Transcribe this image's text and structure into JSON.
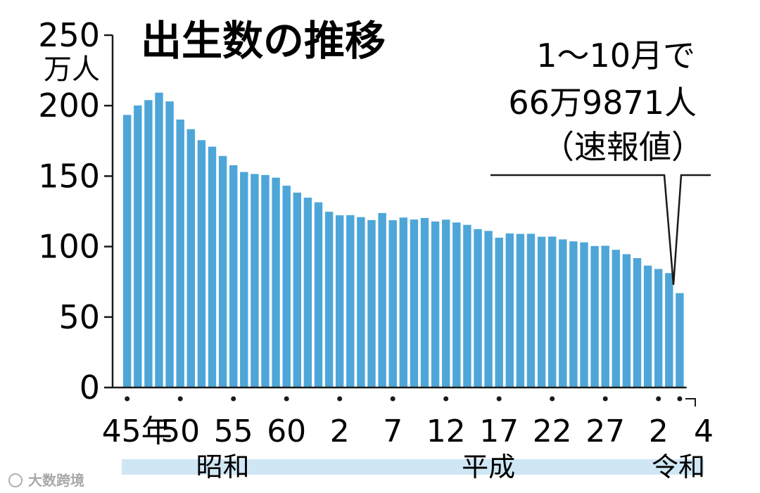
{
  "chart_data": {
    "type": "bar",
    "title": "出生数の推移",
    "y_unit_top": "250",
    "y_unit_label": "万人",
    "ylim": [
      0,
      250
    ],
    "yticks": [
      "0",
      "50",
      "100",
      "150",
      "200"
    ],
    "ytick_values": [
      0,
      50,
      100,
      150,
      200
    ],
    "xtick_labels": [
      "45年",
      "50",
      "55",
      "60",
      "2",
      "7",
      "12",
      "17",
      "22",
      "27",
      "2",
      "4"
    ],
    "xtick_indices": [
      0,
      5,
      10,
      15,
      20,
      25,
      30,
      35,
      40,
      45,
      50,
      52
    ],
    "values": [
      193.4,
      200.1,
      203.9,
      209.2,
      203.0,
      190.1,
      183.3,
      175.5,
      170.9,
      164.3,
      157.7,
      152.9,
      151.5,
      150.8,
      148.9,
      143.2,
      138.3,
      134.7,
      131.4,
      124.7,
      122.2,
      122.3,
      120.9,
      118.8,
      123.8,
      118.7,
      120.6,
      119.2,
      120.3,
      117.8,
      119.1,
      117.1,
      115.4,
      112.4,
      111.1,
      106.3,
      109.3,
      109.0,
      109.1,
      107.0,
      107.1,
      105.1,
      103.7,
      103.0,
      100.4,
      100.6,
      97.7,
      94.6,
      91.8,
      86.5,
      84.1,
      81.2,
      66.99
    ],
    "eras": [
      {
        "label": "昭和",
        "start_index": 0,
        "end_index": 18
      },
      {
        "label": "平成",
        "start_index": 19,
        "end_index": 49
      },
      {
        "label": "令和",
        "start_index": 50,
        "end_index": 52
      }
    ],
    "callout": {
      "line1": "1〜10月で",
      "line2": "66万9871人",
      "line3": "（速報値）"
    },
    "bar_color": "#4ea6d8",
    "era_band_color": "#cfe6f5"
  },
  "watermark": "大数跨境"
}
